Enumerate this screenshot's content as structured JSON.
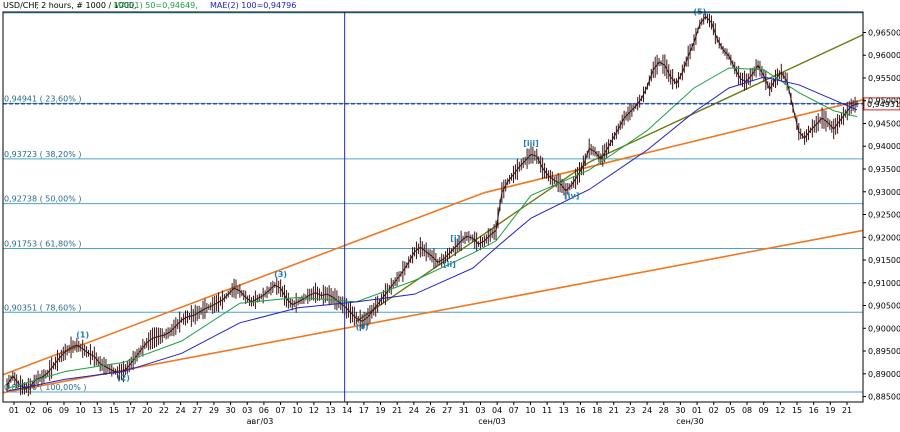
{
  "chart_data": {
    "type": "line",
    "header": {
      "symbol": "USD/CHF",
      "info": ", 2 hours, # 1000 / 1000,",
      "mae1": "MAE(1) 50=0,94649,",
      "mae2": "MAE(2) 100=0,94796"
    },
    "colors": {
      "price": "#3a1414",
      "mae1": "#1e9e4a",
      "mae2": "#2020c8",
      "channel": "#f07820",
      "trend": "#6b7a10",
      "fib": "#4aa6c8",
      "current_marker": "#e02020",
      "vertical_line": "#2828a0",
      "dashed_line": "#1a1a8a"
    },
    "ylim": [
      0.8838,
      0.9695
    ],
    "y_ticks": [
      0.885,
      0.89,
      0.895,
      0.9,
      0.905,
      0.91,
      0.915,
      0.92,
      0.925,
      0.93,
      0.935,
      0.94,
      0.945,
      0.95,
      0.955,
      0.96,
      0.965
    ],
    "y_tick_labels": [
      "0,88500",
      "0,89000",
      "0,89500",
      "0,90000",
      "0,90500",
      "0,91000",
      "0,91500",
      "0,92000",
      "0,92500",
      "0,93000",
      "0,93500",
      "0,94000",
      "0,94500",
      "0,95000",
      "0,95500",
      "0,96000",
      "0,96500"
    ],
    "current_price": 0.94931,
    "current_price_label": "0,94931",
    "x_tick_labels": [
      "01",
      "02",
      "06",
      "09",
      "10",
      "13",
      "15",
      "17",
      "20",
      "22",
      "24",
      "27",
      "29",
      "30",
      "03",
      "06",
      "07",
      "10",
      "12",
      "13",
      "14",
      "17",
      "19",
      "21",
      "24",
      "26",
      "27",
      "31",
      "03",
      "04",
      "07",
      "10",
      "11",
      "13",
      "16",
      "18",
      "21",
      "23",
      "24",
      "28",
      "30",
      "01",
      "02",
      "05",
      "08",
      "09",
      "12",
      "15",
      "16",
      "19",
      "21"
    ],
    "x_month_labels": [
      "авг/03",
      "сен/03",
      "сен/30"
    ],
    "fib_levels": [
      {
        "value": 0.9693,
        "label": ""
      },
      {
        "value": 0.94941,
        "label": "0,94941 ( 23,60% )"
      },
      {
        "value": 0.93723,
        "label": "0,93723 ( 38,20% )"
      },
      {
        "value": 0.92738,
        "label": "0,92738 ( 50,00% )"
      },
      {
        "value": 0.91753,
        "label": "0,91753 ( 61,80% )"
      },
      {
        "value": 0.90351,
        "label": "0,90351 ( 78,60% )"
      },
      {
        "value": 0.886,
        "label": "0,88600 ( 100,00% )"
      }
    ],
    "wave_labels": [
      "(1)",
      "(2)",
      "(3)",
      "(4)",
      "(5)",
      "[i]",
      "[ii]",
      "[iii]",
      "[iv]"
    ],
    "price_path": [
      [
        0,
        0.8875
      ],
      [
        1,
        0.8895
      ],
      [
        2,
        0.8878
      ],
      [
        3,
        0.8868
      ],
      [
        4,
        0.8872
      ],
      [
        5,
        0.8888
      ],
      [
        6,
        0.8892
      ],
      [
        7,
        0.8902
      ],
      [
        8,
        0.8918
      ],
      [
        9,
        0.8935
      ],
      [
        10,
        0.8948
      ],
      [
        11,
        0.8958
      ],
      [
        12,
        0.8963
      ],
      [
        13,
        0.8955
      ],
      [
        14,
        0.8945
      ],
      [
        15,
        0.8938
      ],
      [
        16,
        0.8922
      ],
      [
        17,
        0.8915
      ],
      [
        18,
        0.8908
      ],
      [
        19,
        0.8903
      ],
      [
        20,
        0.8905
      ],
      [
        21,
        0.8918
      ],
      [
        22,
        0.8935
      ],
      [
        23,
        0.8952
      ],
      [
        24,
        0.8968
      ],
      [
        25,
        0.8978
      ],
      [
        26,
        0.8982
      ],
      [
        27,
        0.8985
      ],
      [
        28,
        0.8992
      ],
      [
        29,
        0.9005
      ],
      [
        30,
        0.9018
      ],
      [
        31,
        0.9025
      ],
      [
        32,
        0.9028
      ],
      [
        33,
        0.9035
      ],
      [
        34,
        0.9043
      ],
      [
        35,
        0.9048
      ],
      [
        36,
        0.9055
      ],
      [
        37,
        0.9062
      ],
      [
        38,
        0.9075
      ],
      [
        39,
        0.9088
      ],
      [
        40,
        0.9082
      ],
      [
        41,
        0.9068
      ],
      [
        42,
        0.9058
      ],
      [
        43,
        0.9065
      ],
      [
        44,
        0.9072
      ],
      [
        45,
        0.9083
      ],
      [
        46,
        0.9095
      ],
      [
        47,
        0.9088
      ],
      [
        48,
        0.9065
      ],
      [
        49,
        0.9052
      ],
      [
        50,
        0.9058
      ],
      [
        51,
        0.9065
      ],
      [
        52,
        0.9073
      ],
      [
        53,
        0.9078
      ],
      [
        54,
        0.9072
      ],
      [
        55,
        0.9075
      ],
      [
        56,
        0.9068
      ],
      [
        57,
        0.9058
      ],
      [
        58,
        0.9048
      ],
      [
        59,
        0.9035
      ],
      [
        60,
        0.9022
      ],
      [
        61,
        0.9015
      ],
      [
        62,
        0.9025
      ],
      [
        63,
        0.9042
      ],
      [
        64,
        0.9058
      ],
      [
        65,
        0.9075
      ],
      [
        66,
        0.9092
      ],
      [
        67,
        0.9108
      ],
      [
        68,
        0.9125
      ],
      [
        69,
        0.9145
      ],
      [
        70,
        0.9168
      ],
      [
        71,
        0.9178
      ],
      [
        72,
        0.9168
      ],
      [
        73,
        0.9158
      ],
      [
        74,
        0.9145
      ],
      [
        75,
        0.9152
      ],
      [
        76,
        0.9165
      ],
      [
        77,
        0.9178
      ],
      [
        78,
        0.9192
      ],
      [
        79,
        0.9202
      ],
      [
        80,
        0.9198
      ],
      [
        81,
        0.9185
      ],
      [
        82,
        0.9192
      ],
      [
        83,
        0.9205
      ],
      [
        84,
        0.9215
      ],
      [
        85,
        0.9298
      ],
      [
        86,
        0.9322
      ],
      [
        87,
        0.9338
      ],
      [
        88,
        0.9355
      ],
      [
        89,
        0.9368
      ],
      [
        90,
        0.9382
      ],
      [
        91,
        0.9378
      ],
      [
        92,
        0.9352
      ],
      [
        93,
        0.9335
      ],
      [
        94,
        0.9325
      ],
      [
        95,
        0.9318
      ],
      [
        96,
        0.9302
      ],
      [
        97,
        0.9315
      ],
      [
        98,
        0.9335
      ],
      [
        99,
        0.9358
      ],
      [
        100,
        0.9395
      ],
      [
        101,
        0.9388
      ],
      [
        102,
        0.9372
      ],
      [
        103,
        0.9392
      ],
      [
        104,
        0.9415
      ],
      [
        105,
        0.9438
      ],
      [
        106,
        0.9462
      ],
      [
        107,
        0.9475
      ],
      [
        108,
        0.9488
      ],
      [
        109,
        0.9505
      ],
      [
        110,
        0.9532
      ],
      [
        111,
        0.9568
      ],
      [
        112,
        0.9585
      ],
      [
        113,
        0.9578
      ],
      [
        114,
        0.9552
      ],
      [
        115,
        0.9538
      ],
      [
        116,
        0.9562
      ],
      [
        117,
        0.9598
      ],
      [
        118,
        0.9628
      ],
      [
        119,
        0.9668
      ],
      [
        120,
        0.9685
      ],
      [
        121,
        0.9672
      ],
      [
        122,
        0.9635
      ],
      [
        123,
        0.9612
      ],
      [
        124,
        0.9598
      ],
      [
        125,
        0.9572
      ],
      [
        126,
        0.9548
      ],
      [
        127,
        0.9542
      ],
      [
        128,
        0.9558
      ],
      [
        129,
        0.9578
      ],
      [
        130,
        0.9555
      ],
      [
        131,
        0.9525
      ],
      [
        132,
        0.9548
      ],
      [
        133,
        0.9562
      ],
      [
        134,
        0.9542
      ],
      [
        135,
        0.9485
      ],
      [
        136,
        0.9432
      ],
      [
        137,
        0.9418
      ],
      [
        138,
        0.9435
      ],
      [
        139,
        0.9448
      ],
      [
        140,
        0.9462
      ],
      [
        141,
        0.9452
      ],
      [
        142,
        0.9438
      ],
      [
        143,
        0.9455
      ],
      [
        144,
        0.9472
      ],
      [
        145,
        0.9488
      ],
      [
        146,
        0.9493
      ]
    ],
    "mae1_path": [
      [
        0,
        0.8868
      ],
      [
        10,
        0.8905
      ],
      [
        20,
        0.8925
      ],
      [
        30,
        0.8972
      ],
      [
        40,
        0.9055
      ],
      [
        50,
        0.9068
      ],
      [
        60,
        0.9058
      ],
      [
        70,
        0.9105
      ],
      [
        80,
        0.9165
      ],
      [
        84,
        0.9192
      ],
      [
        90,
        0.9292
      ],
      [
        100,
        0.9348
      ],
      [
        110,
        0.9435
      ],
      [
        118,
        0.9528
      ],
      [
        124,
        0.9572
      ],
      [
        130,
        0.9568
      ],
      [
        136,
        0.9518
      ],
      [
        142,
        0.9478
      ],
      [
        146,
        0.9465
      ]
    ],
    "mae2_path": [
      [
        0,
        0.8862
      ],
      [
        10,
        0.8888
      ],
      [
        20,
        0.8905
      ],
      [
        30,
        0.8945
      ],
      [
        40,
        0.9012
      ],
      [
        50,
        0.9045
      ],
      [
        60,
        0.9058
      ],
      [
        70,
        0.9075
      ],
      [
        80,
        0.9132
      ],
      [
        85,
        0.9188
      ],
      [
        90,
        0.9242
      ],
      [
        100,
        0.9305
      ],
      [
        110,
        0.9392
      ],
      [
        118,
        0.9475
      ],
      [
        124,
        0.9528
      ],
      [
        130,
        0.9552
      ],
      [
        136,
        0.9535
      ],
      [
        142,
        0.9502
      ],
      [
        146,
        0.948
      ]
    ]
  }
}
